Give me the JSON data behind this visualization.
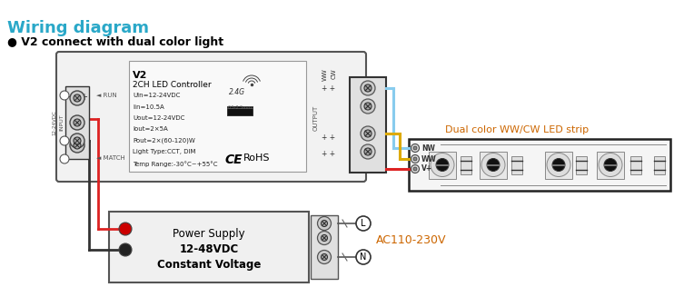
{
  "title": "Wiring diagram",
  "title_color": "#2aa8c8",
  "subtitle": "● V2 connect with dual color light",
  "subtitle_color": "#000000",
  "bg_color": "#ffffff",
  "controller_label": "V2",
  "controller_sublabel": "2CH LED Controller",
  "controller_specs": [
    "Uin=12-24VDC",
    "Iin=10.5A",
    "Uout=12-24VDC",
    "Iout=2×5A",
    "Pout=2×(60-120)W",
    "Light Type:CCT, DIM",
    "Temp Range:-30°C~+55°C"
  ],
  "rohs_text": "RoHS",
  "rf_text": "2.4G",
  "run_label": "RUN",
  "match_label": "MATCH",
  "input_label": "INPUT",
  "vdc_label": "12-24VDC",
  "output_label": "OUTPUT",
  "ww_label": "WW",
  "cw_label": "CW",
  "led_strip_label": "Dual color WW/CW LED strip",
  "led_strip_label_color": "#cc6600",
  "wire_nw_color": "#88ccee",
  "wire_ww_color": "#ddaa00",
  "wire_vplus_color": "#dd2222",
  "wire_black_color": "#333333",
  "wire_red_color": "#dd2222",
  "terminal_labels": [
    "NW",
    "WW",
    "V+"
  ],
  "power_supply_line1": "Power Supply",
  "power_supply_line2": "12-48VDC",
  "power_supply_line3": "Constant Voltage",
  "ac_label": "AC110-230V",
  "ac_label_color": "#cc6600",
  "L_label": "L",
  "N_label": "N"
}
